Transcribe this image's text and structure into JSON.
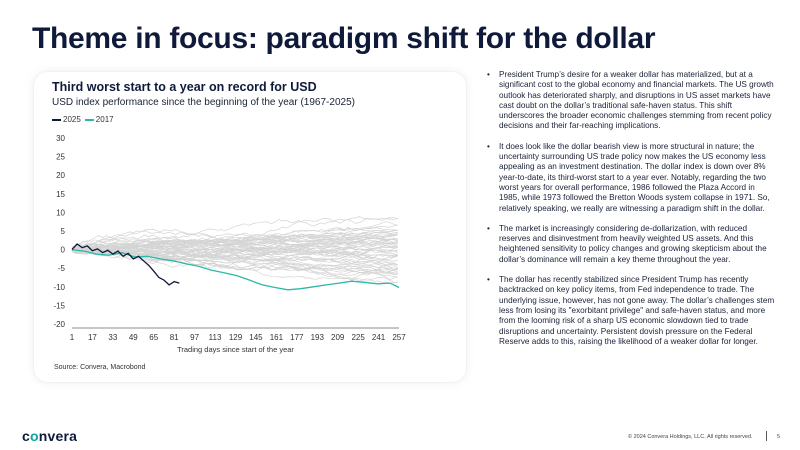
{
  "slide": {
    "title": "Theme in focus: paradigm shift for the dollar",
    "footer_logo_pre": "c",
    "footer_logo_o": "o",
    "footer_logo_post": "nvera",
    "copyright": "© 2024 Convera Holdings, LLC. All rights reserved.",
    "page_number": "5"
  },
  "chart_data": {
    "type": "line",
    "title": "Third worst start to a year on record for USD",
    "subtitle": "USD index performance since the beginning of the year (1967-2025)",
    "xlabel": "Trading days since start of the year",
    "ylabel": "",
    "source": "Source: Convera, Macrobond",
    "xlim": [
      1,
      257
    ],
    "ylim": [
      -20,
      30
    ],
    "x_ticks": [
      "1",
      "17",
      "33",
      "49",
      "65",
      "81",
      "97",
      "113",
      "129",
      "145",
      "161",
      "177",
      "193",
      "209",
      "225",
      "241",
      "257"
    ],
    "y_ticks": [
      "30",
      "25",
      "20",
      "15",
      "10",
      "5",
      "0",
      "-5",
      "-10",
      "-15",
      "-20"
    ],
    "legend_position": "top-left",
    "background_series_count": 57,
    "series": [
      {
        "name": "2025",
        "color": "#0f1a3a",
        "x": [
          1,
          5,
          9,
          13,
          17,
          21,
          25,
          29,
          33,
          37,
          41,
          45,
          49,
          53,
          57,
          61,
          65,
          69,
          73,
          77,
          81,
          85
        ],
        "values": [
          0,
          1.5,
          0.5,
          1.0,
          -0.3,
          0.2,
          -0.8,
          -0.2,
          -1.2,
          -0.4,
          -1.8,
          -1.0,
          -2.5,
          -1.8,
          -3.0,
          -4.2,
          -5.8,
          -7.5,
          -8.2,
          -9.5,
          -8.6,
          -9.0
        ]
      },
      {
        "name": "2017",
        "color": "#2bb8a8",
        "x": [
          1,
          12,
          20,
          30,
          40,
          50,
          60,
          70,
          80,
          90,
          100,
          110,
          120,
          130,
          140,
          150,
          160,
          170,
          180,
          190,
          200,
          210,
          220,
          230,
          240,
          250,
          257
        ],
        "values": [
          0,
          -0.5,
          -1.2,
          -1.5,
          -0.8,
          -2.0,
          -1.8,
          -2.5,
          -3.0,
          -3.8,
          -4.5,
          -5.5,
          -6.2,
          -7.0,
          -8.2,
          -9.5,
          -10.2,
          -10.8,
          -10.5,
          -10.0,
          -9.5,
          -9.0,
          -8.5,
          -8.8,
          -9.2,
          -9.0,
          -10.2
        ]
      }
    ]
  },
  "bullets": [
    "President Trump’s desire for a weaker dollar has materialized, but at a significant cost to the global economy and financial markets. The US growth outlook has deteriorated sharply, and disruptions in US asset markets have cast doubt on the dollar’s traditional safe-haven status. This shift underscores the broader economic challenges stemming from recent policy decisions and their far-reaching implications.",
    "It does look like the dollar bearish view is more structural in nature; the uncertainty surrounding US trade policy now makes the US economy less appealing as an investment destination. The dollar index is down over 8% year-to-date, its third-worst start to a year ever. Notably, regarding the two worst years for overall performance, 1986 followed the Plaza Accord in 1985, while 1973 followed the Bretton Woods system collapse in 1971. So, relatively speaking, we really are witnessing a paradigm shift in the dollar.",
    "The market is increasingly considering de-dollarization, with reduced reserves and disinvestment from heavily weighted US assets. And this heightened sensitivity to policy changes and growing skepticism about the dollar’s dominance will remain a key theme throughout the year.",
    "The dollar has recently stabilized since President Trump has recently backtracked on key policy items, from Fed independence to trade. The underlying issue, however, has not gone away. The dollar’s challenges stem less from losing its \"exorbitant privilege\" and safe-haven status, and more from the looming risk of a sharp US economic slowdown tied to trade disruptions and uncertainty. Persistent dovish pressure on the Federal Reserve adds to this, raising the likelihood of a weaker dollar for longer."
  ]
}
